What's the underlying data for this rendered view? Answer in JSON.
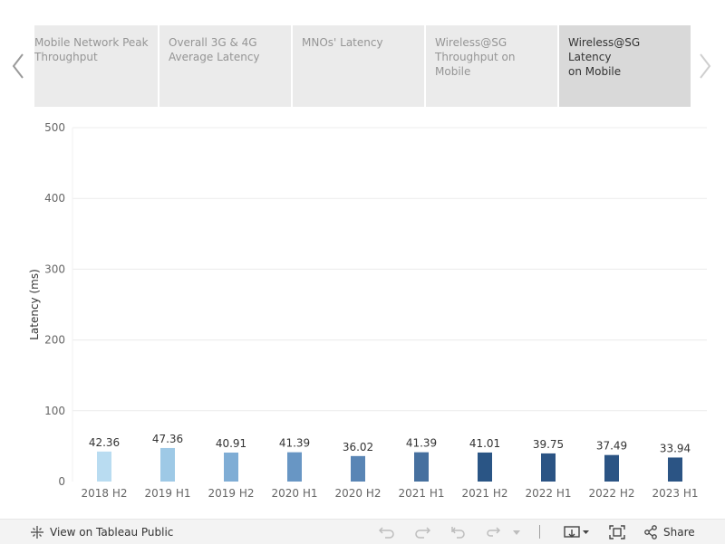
{
  "story": {
    "tabs": [
      {
        "label": "Mobile Network  Peak\nThroughput",
        "active": false
      },
      {
        "label": "Overall 3G & 4G\nAverage Latency",
        "active": false
      },
      {
        "label": "MNOs' Latency",
        "active": false
      },
      {
        "label": "Wireless@SG\nThroughput on Mobile",
        "active": false
      },
      {
        "label": "Wireless@SG Latency\non Mobile",
        "active": true
      }
    ],
    "prev_icon": "chevron-left-icon",
    "next_icon": "chevron-right-icon"
  },
  "chart_data": {
    "type": "bar",
    "title": "",
    "xlabel": "",
    "ylabel": "Latency (ms)",
    "ylim": [
      0,
      500
    ],
    "yticks": [
      0,
      100,
      200,
      300,
      400,
      500
    ],
    "grid": true,
    "categories": [
      "2018 H2",
      "2019 H1",
      "2019 H2",
      "2020 H1",
      "2020 H2",
      "2021 H1",
      "2021 H2",
      "2022 H1",
      "2022 H2",
      "2023 H1"
    ],
    "values": [
      42.36,
      47.36,
      40.91,
      41.39,
      36.02,
      41.39,
      41.01,
      39.75,
      37.49,
      33.94
    ],
    "colors": [
      "#b9dcf1",
      "#9ec9e6",
      "#7fadd5",
      "#6896c4",
      "#5985b5",
      "#46709f",
      "#2a5585",
      "#2b5484",
      "#2b5484",
      "#2b5484"
    ]
  },
  "toolbar": {
    "view_label": "View on Tableau Public",
    "share_label": "Share",
    "icons": [
      "tableau-logo-icon",
      "undo-icon",
      "redo-icon",
      "revert-icon",
      "refresh-icon",
      "dropdown-icon",
      "download-icon",
      "fullscreen-icon",
      "share-icon"
    ]
  }
}
